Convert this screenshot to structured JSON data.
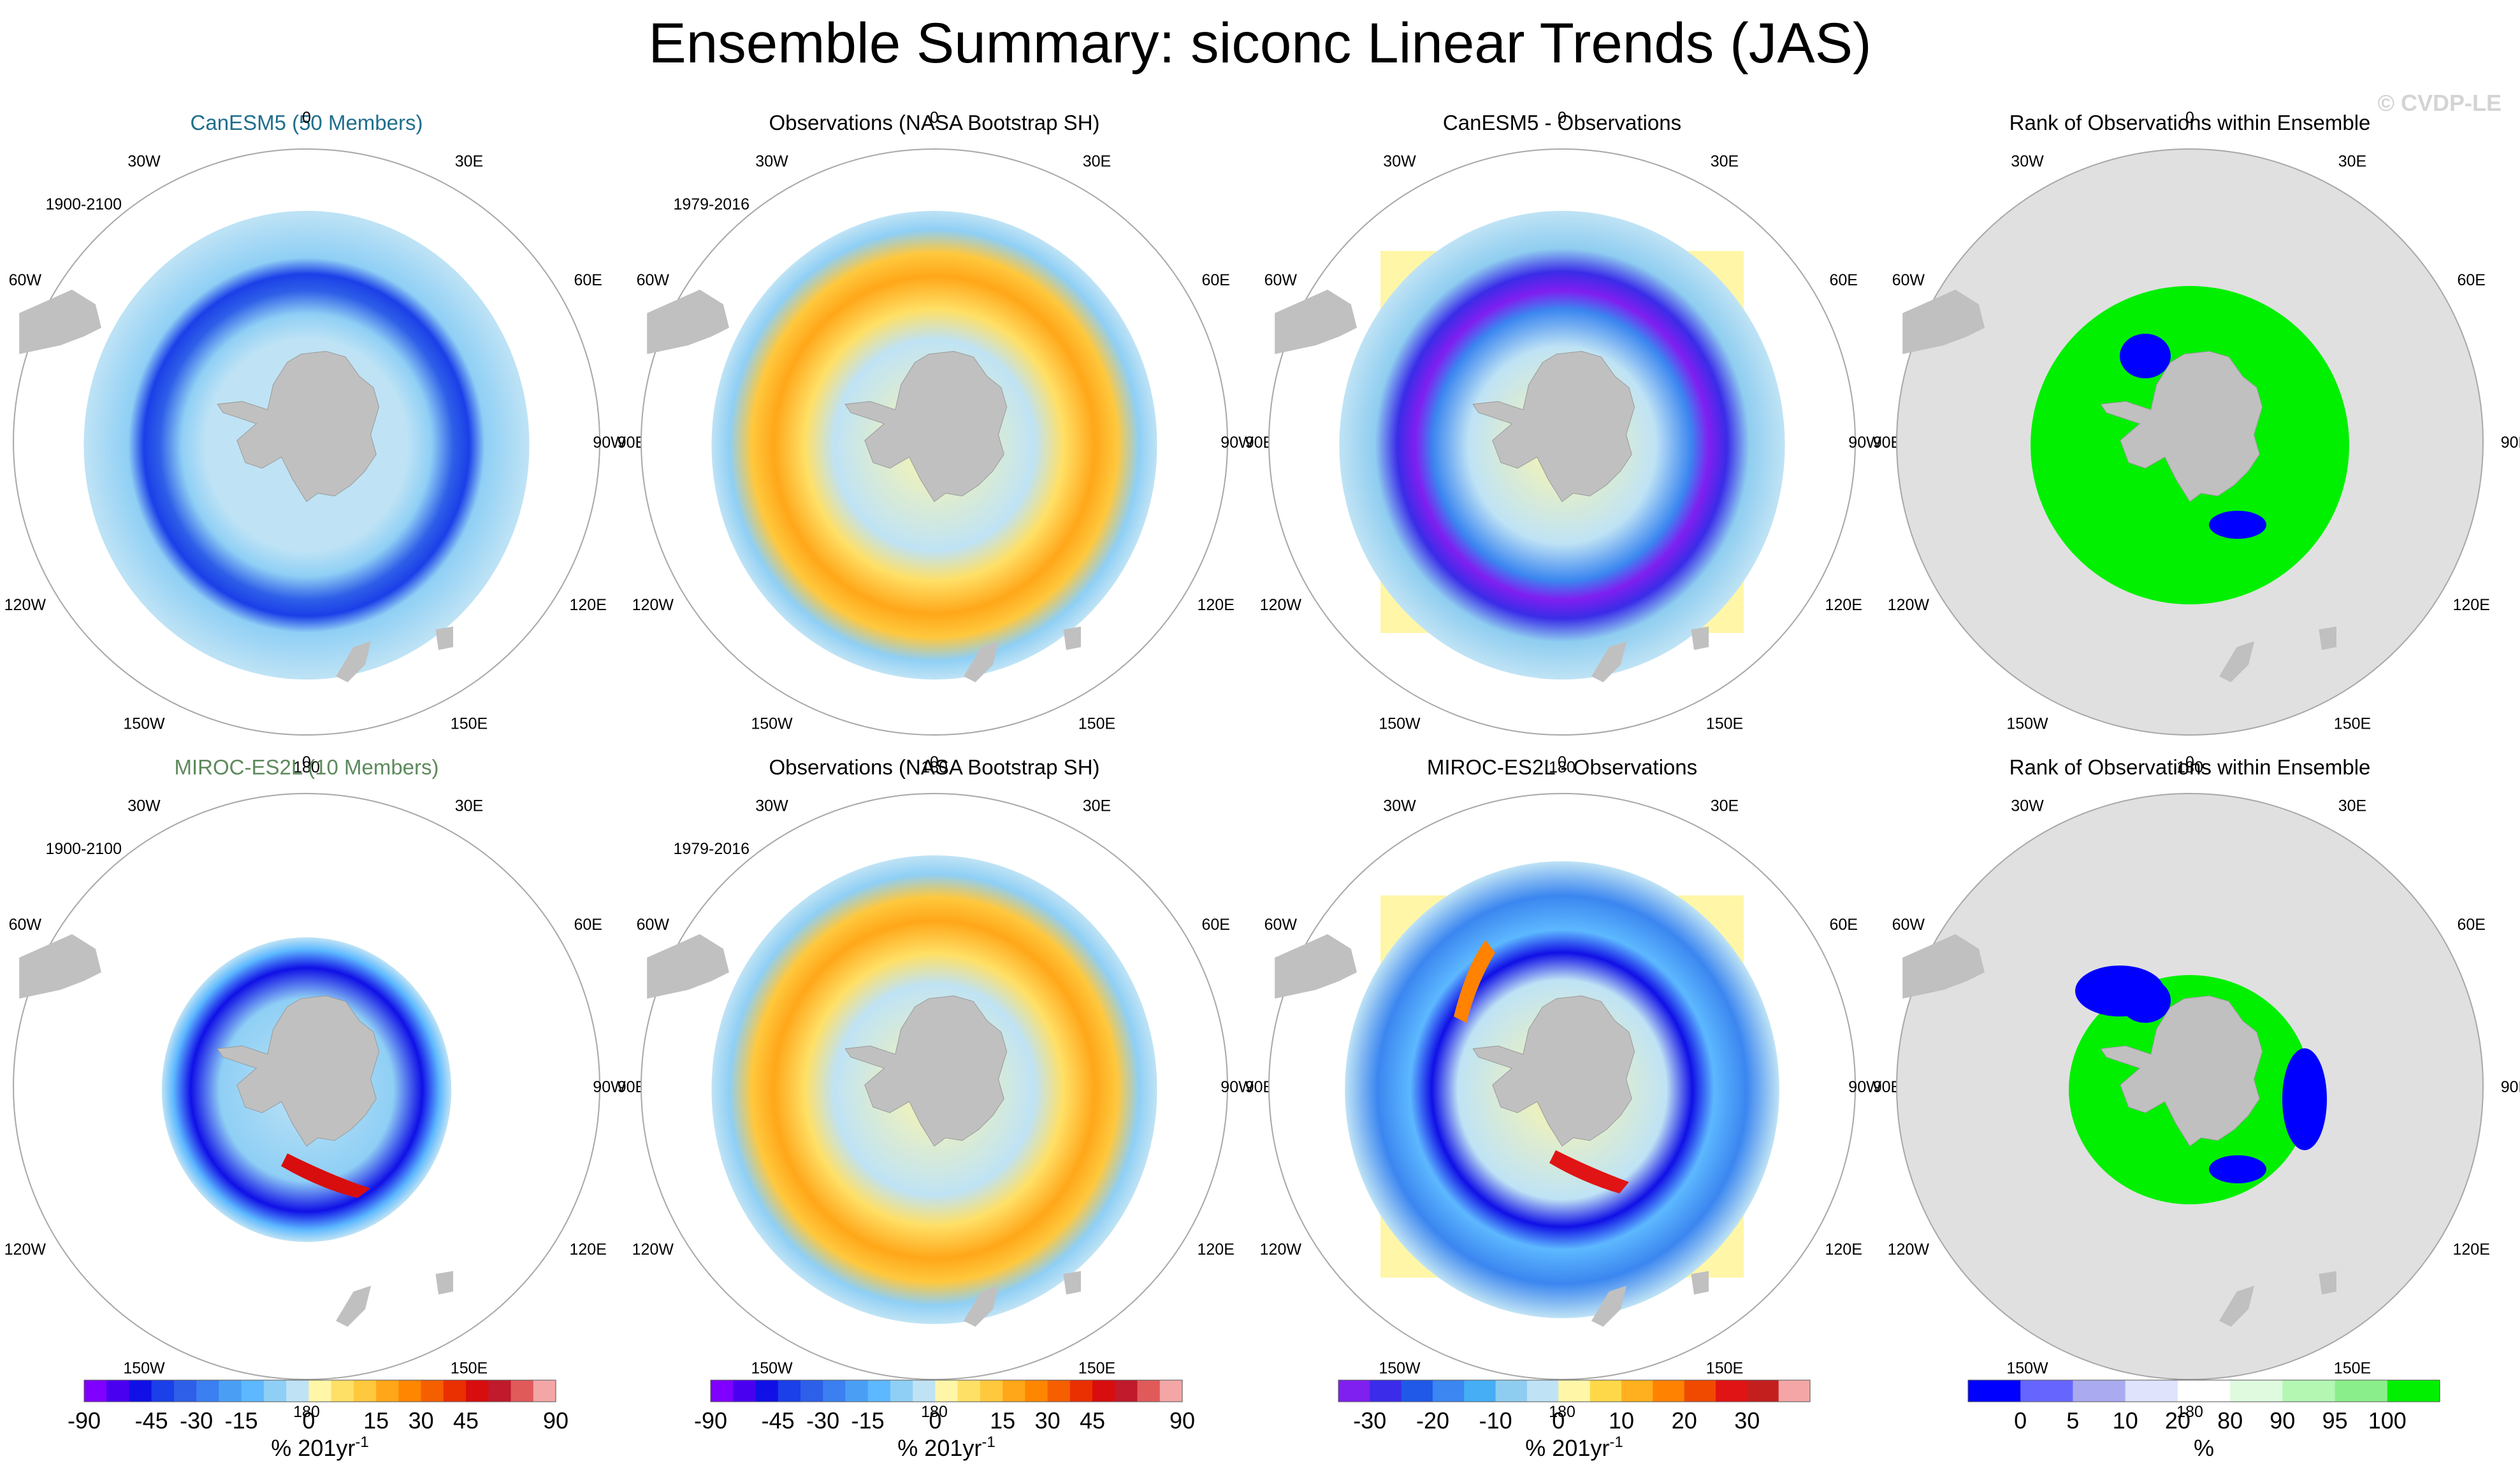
{
  "title": "Ensemble Summary: siconc Linear Trends (JAS)",
  "watermark": "© CVDP-LE",
  "lon_labels": [
    "0",
    "30E",
    "60E",
    "90E",
    "120E",
    "150E",
    "180",
    "150W",
    "120W",
    "90W",
    "60W",
    "30W"
  ],
  "panels": [
    {
      "title": "CanESM5 (50 Members)",
      "title_color": "#1f6e8c",
      "period": "1900-2100",
      "kind": "trend",
      "variant": "canesm_model"
    },
    {
      "title": "Observations (NASA Bootstrap SH)",
      "title_color": "#000000",
      "period": "1979-2016",
      "kind": "trend",
      "variant": "obs"
    },
    {
      "title": "CanESM5 - Observations",
      "title_color": "#000000",
      "period": "",
      "kind": "diff",
      "variant": "canesm_diff"
    },
    {
      "title": "Rank of Observations within Ensemble",
      "title_color": "#000000",
      "period": "",
      "kind": "rank",
      "variant": "canesm_rank"
    },
    {
      "title": "MIROC-ES2L (10 Members)",
      "title_color": "#5c8a5c",
      "period": "1900-2100",
      "kind": "trend",
      "variant": "miroc_model"
    },
    {
      "title": "Observations (NASA Bootstrap SH)",
      "title_color": "#000000",
      "period": "1979-2016",
      "kind": "trend",
      "variant": "obs2"
    },
    {
      "title": "MIROC-ES2L - Observations",
      "title_color": "#000000",
      "period": "",
      "kind": "diff",
      "variant": "miroc_diff"
    },
    {
      "title": "Rank of Observations within Ensemble",
      "title_color": "#000000",
      "period": "",
      "kind": "rank",
      "variant": "miroc_rank"
    }
  ],
  "colorbars": [
    {
      "name": "trend-colorbar-1",
      "labels": [
        "-90",
        "-45",
        "-30",
        "-15",
        "0",
        "15",
        "30",
        "45",
        "90"
      ],
      "unit": "% 201yr",
      "unit_sup": "-1",
      "colors": [
        "#7f00ff",
        "#4a00f0",
        "#1010e6",
        "#1b3fe8",
        "#2e5fe8",
        "#3b7ff0",
        "#4a9ff5",
        "#5db8ff",
        "#8fcff5",
        "#bfe3f5",
        "#fff6a8",
        "#ffe066",
        "#ffc83d",
        "#ffa719",
        "#ff8600",
        "#f55f00",
        "#ea2f00",
        "#d80d0d",
        "#c01a2c",
        "#e05a5a",
        "#f4a6a6"
      ]
    },
    {
      "name": "trend-colorbar-2",
      "labels": [
        "-90",
        "-45",
        "-30",
        "-15",
        "0",
        "15",
        "30",
        "45",
        "90"
      ],
      "unit": "% 201yr",
      "unit_sup": "-1",
      "colors": [
        "#7f00ff",
        "#4a00f0",
        "#1010e6",
        "#1b3fe8",
        "#2e5fe8",
        "#3b7ff0",
        "#4a9ff5",
        "#5db8ff",
        "#8fcff5",
        "#bfe3f5",
        "#fff6a8",
        "#ffe066",
        "#ffc83d",
        "#ffa719",
        "#ff8600",
        "#f55f00",
        "#ea2f00",
        "#d80d0d",
        "#c01a2c",
        "#e05a5a",
        "#f4a6a6"
      ]
    },
    {
      "name": "diff-colorbar",
      "labels": [
        "-30",
        "-20",
        "-10",
        "0",
        "10",
        "20",
        "30"
      ],
      "unit": "% 201yr",
      "unit_sup": "-1",
      "colors": [
        "#7f1ff0",
        "#3a2ce8",
        "#2058e8",
        "#3b86f0",
        "#45aef5",
        "#8fcdf0",
        "#bfe3f5",
        "#fff6a8",
        "#ffd84a",
        "#ffb01e",
        "#ff8200",
        "#f04a00",
        "#e01414",
        "#c41f1f",
        "#f4a6a6"
      ]
    },
    {
      "name": "rank-colorbar",
      "labels": [
        "0",
        "5",
        "10",
        "20",
        "80",
        "90",
        "95",
        "100"
      ],
      "unit": "%",
      "unit_sup": "",
      "colors": [
        "#0000ff",
        "#6666ff",
        "#aaaaf0",
        "#dfe3fb",
        "#ffffff",
        "#e0fae0",
        "#b3f7b3",
        "#8aef8a",
        "#00f000"
      ]
    }
  ],
  "chart_data": {
    "type": "heatmap",
    "title": "Ensemble Summary: siconc Linear Trends (JAS)",
    "variable": "siconc",
    "season": "JAS",
    "projection": "South polar stereographic",
    "longitude_labels": [
      "0",
      "30E",
      "60E",
      "90E",
      "120E",
      "150E",
      "180",
      "150W",
      "120W",
      "90W",
      "60W",
      "30W"
    ],
    "trend_colorbar": {
      "ticks": [
        -90,
        -45,
        -30,
        -15,
        0,
        15,
        30,
        45,
        90
      ],
      "units": "% 201yr^-1"
    },
    "difference_colorbar": {
      "ticks": [
        -30,
        -20,
        -10,
        0,
        10,
        20,
        30
      ],
      "units": "% 201yr^-1"
    },
    "rank_colorbar": {
      "ticks": [
        0,
        5,
        10,
        20,
        80,
        90,
        95,
        100
      ],
      "units": "%"
    },
    "panels": [
      {
        "name": "CanESM5 (50 Members)",
        "period": "1900-2100",
        "note": "strong negative trend (-30 to -90) ring around sea-ice edge; weak negative elsewhere"
      },
      {
        "name": "Observations (NASA Bootstrap SH)",
        "period": "1979-2016",
        "note": "mostly positive trends (0 to 45) near ice edge, small negative patches"
      },
      {
        "name": "CanESM5 - Observations",
        "note": "negative differences (-20 to -30+) along ring, small positive in Weddell/Ross"
      },
      {
        "name": "Rank of Observations within Ensemble (CanESM5)",
        "note": "mostly 100% (green), some 0-5% (blue) patches"
      },
      {
        "name": "MIROC-ES2L (10 Members)",
        "period": "1900-2100",
        "note": "negative trends near coast, strong positive (45-90) near Ross Sea"
      },
      {
        "name": "Observations (NASA Bootstrap SH)",
        "period": "1979-2016",
        "note": "positive trends along ice edge, negative inner patches"
      },
      {
        "name": "MIROC-ES2L - Observations",
        "note": "negative ring, positive in Ross Sea and Weddell margins"
      },
      {
        "name": "Rank of Observations within Ensemble (MIROC-ES2L)",
        "note": "ring of 100% (green) with 0% (blue) outer patches"
      }
    ]
  }
}
